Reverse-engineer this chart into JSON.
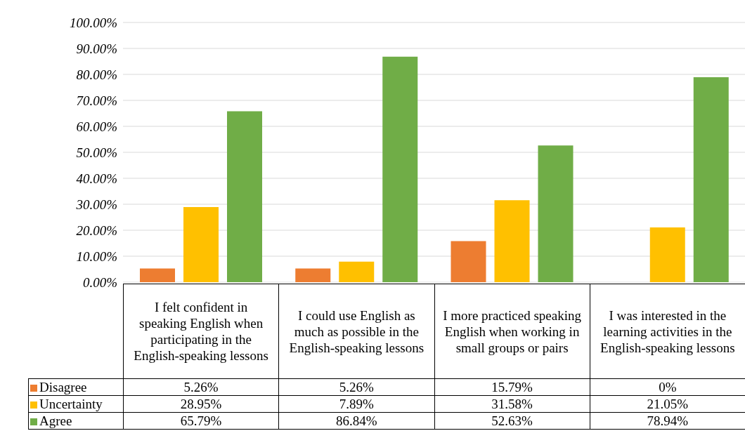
{
  "chart_data": {
    "type": "bar",
    "categories": [
      "I felt confident in speaking English when participating in the English-speaking lessons",
      "I could use English as much as possible in the English-speaking lessons",
      "I more practiced speaking English when working in small groups or pairs",
      "I was interested in the learning activities in the English-speaking lessons"
    ],
    "series": [
      {
        "name": "Disagree",
        "color": "#ed7d31",
        "values": [
          5.26,
          5.26,
          15.79,
          0
        ],
        "value_labels": [
          "5.26%",
          "5.26%",
          "15.79%",
          "0%"
        ]
      },
      {
        "name": "Uncertainty",
        "color": "#ffc000",
        "values": [
          28.95,
          7.89,
          31.58,
          21.05
        ],
        "value_labels": [
          "28.95%",
          "7.89%",
          "31.58%",
          "21.05%"
        ]
      },
      {
        "name": "Agree",
        "color": "#70ad47",
        "values": [
          65.79,
          86.84,
          52.63,
          78.94
        ],
        "value_labels": [
          "65.79%",
          "86.84%",
          "52.63%",
          "78.94%"
        ]
      }
    ],
    "ylim": [
      0,
      100
    ],
    "yticks": [
      {
        "value": 0,
        "label": "0.00%"
      },
      {
        "value": 10,
        "label": "10.00%"
      },
      {
        "value": 20,
        "label": "20.00%"
      },
      {
        "value": 30,
        "label": "30.00%"
      },
      {
        "value": 40,
        "label": "40.00%"
      },
      {
        "value": 50,
        "label": "50.00%"
      },
      {
        "value": 60,
        "label": "60.00%"
      },
      {
        "value": 70,
        "label": "70.00%"
      },
      {
        "value": 80,
        "label": "80.00%"
      },
      {
        "value": 90,
        "label": "90.00%"
      },
      {
        "value": 100,
        "label": "100.00%"
      }
    ],
    "grid": "y",
    "legend": "bottom left"
  }
}
